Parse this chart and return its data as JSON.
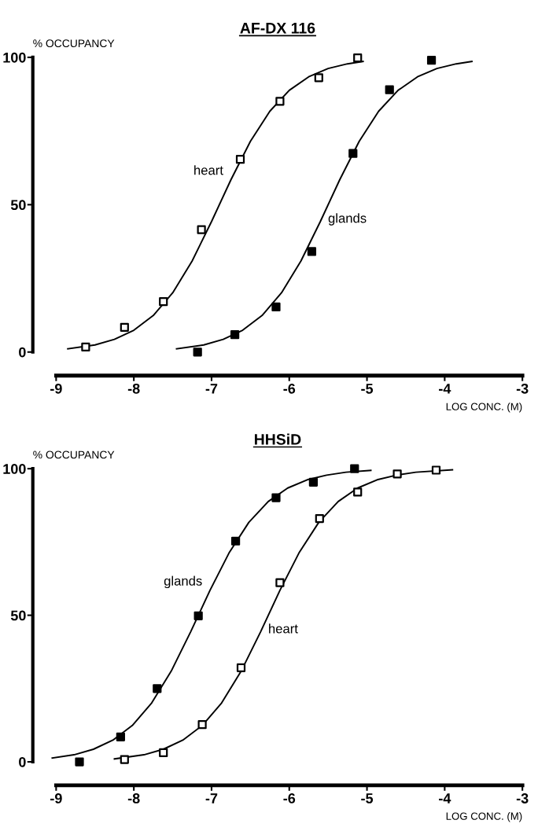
{
  "chart_data": [
    {
      "type": "scatter",
      "title": "AF-DX 116",
      "ylabel": "% OCCUPANCY",
      "xlabel": "LOG CONC. (M)",
      "xlim": [
        -9.3,
        -3.0
      ],
      "ylim": [
        -8,
        100
      ],
      "xticks": [
        -9,
        -8,
        -7,
        -6,
        -5,
        -4,
        -3
      ],
      "yticks": [
        0,
        50,
        100
      ],
      "marker": "square",
      "grid": false,
      "legend": false,
      "series": [
        {
          "color": "#ffffff",
          "x": [
            -8.62,
            -8.12,
            -7.62,
            -7.13,
            -6.63,
            -6.12,
            -5.62,
            -5.12
          ],
          "values": [
            1.7,
            8.4,
            17.1,
            41.5,
            65.4,
            85.1,
            93.1,
            99.8
          ]
        },
        {
          "color": "#000000",
          "x": [
            -7.18,
            -6.7,
            -6.17,
            -5.71,
            -5.18,
            -4.71,
            -4.17
          ],
          "values": [
            0,
            5.9,
            15.3,
            34.1,
            67.4,
            89.0,
            99.0
          ]
        },
        {
          "type": "line",
          "marker": "none",
          "color": "#000000",
          "x": [
            -8.85,
            -8.5,
            -8.25,
            -8.0,
            -7.75,
            -7.5,
            -7.25,
            -7.0,
            -6.75,
            -6.5,
            -6.25,
            -6.0,
            -5.75,
            -5.5,
            -5.25,
            -5.05
          ],
          "values": [
            1.1,
            2.4,
            4.3,
            7.4,
            12.4,
            20.1,
            30.9,
            44.3,
            58.5,
            71.5,
            81.7,
            88.8,
            93.4,
            96.2,
            97.8,
            98.6
          ]
        },
        {
          "type": "line",
          "marker": "none",
          "color": "#000000",
          "x": [
            -7.45,
            -7.1,
            -6.85,
            -6.6,
            -6.35,
            -6.1,
            -5.85,
            -5.6,
            -5.35,
            -5.1,
            -4.85,
            -4.6,
            -4.35,
            -4.1,
            -3.85,
            -3.65
          ],
          "values": [
            1.1,
            2.4,
            4.3,
            7.4,
            12.4,
            20.1,
            30.9,
            44.3,
            58.5,
            71.5,
            81.7,
            88.8,
            93.4,
            96.2,
            97.8,
            98.6
          ]
        }
      ],
      "annotations": [
        {
          "text": "heart",
          "x": -6.75,
          "y": 58.5
        },
        {
          "text": "glands",
          "x": -5.6,
          "y": 44.3
        }
      ]
    },
    {
      "type": "scatter",
      "title": "HHSiD",
      "ylabel": "% OCCUPANCY",
      "xlabel": "LOG CONC. (M)",
      "xlim": [
        -9.3,
        -3.0
      ],
      "ylim": [
        -8,
        100
      ],
      "xticks": [
        -9,
        -8,
        -7,
        -6,
        -5,
        -4,
        -3
      ],
      "yticks": [
        0,
        50,
        100
      ],
      "marker": "square",
      "grid": false,
      "legend": false,
      "series": [
        {
          "color": "#000000",
          "x": [
            -8.7,
            -8.17,
            -7.7,
            -7.17,
            -6.69,
            -6.17,
            -5.69,
            -5.16
          ],
          "values": [
            0,
            8.5,
            25.0,
            49.8,
            75.3,
            90.1,
            95.4,
            100
          ]
        },
        {
          "color": "#ffffff",
          "x": [
            -8.12,
            -7.62,
            -7.12,
            -6.62,
            -6.12,
            -5.61,
            -5.12,
            -4.61,
            -4.11
          ],
          "values": [
            0.8,
            3.1,
            12.7,
            32.1,
            61.1,
            83.0,
            92.0,
            98.2,
            99.5
          ]
        },
        {
          "type": "line",
          "marker": "none",
          "color": "#000000",
          "x": [
            -9.05,
            -8.77,
            -8.52,
            -8.27,
            -8.02,
            -7.77,
            -7.52,
            -7.27,
            -7.02,
            -6.77,
            -6.52,
            -6.27,
            -6.02,
            -5.77,
            -5.52,
            -5.27,
            -4.95
          ],
          "values": [
            1.3,
            2.4,
            4.3,
            7.4,
            12.4,
            20.1,
            30.9,
            44.3,
            58.5,
            71.5,
            81.7,
            88.8,
            93.4,
            96.2,
            97.8,
            98.8,
            99.4
          ]
        },
        {
          "type": "line",
          "marker": "none",
          "color": "#000000",
          "x": [
            -8.25,
            -7.87,
            -7.62,
            -7.37,
            -7.12,
            -6.87,
            -6.62,
            -6.37,
            -6.12,
            -5.87,
            -5.62,
            -5.37,
            -5.12,
            -4.87,
            -4.62,
            -4.37,
            -3.9
          ],
          "values": [
            1.0,
            2.4,
            4.3,
            7.4,
            12.4,
            20.1,
            30.9,
            44.3,
            58.5,
            71.5,
            81.7,
            88.8,
            93.4,
            96.2,
            97.8,
            98.8,
            99.6
          ]
        }
      ],
      "annotations": [
        {
          "text": "glands",
          "x": -7.02,
          "y": 58.5
        },
        {
          "text": "heart",
          "x": -6.37,
          "y": 44.3
        }
      ]
    }
  ]
}
